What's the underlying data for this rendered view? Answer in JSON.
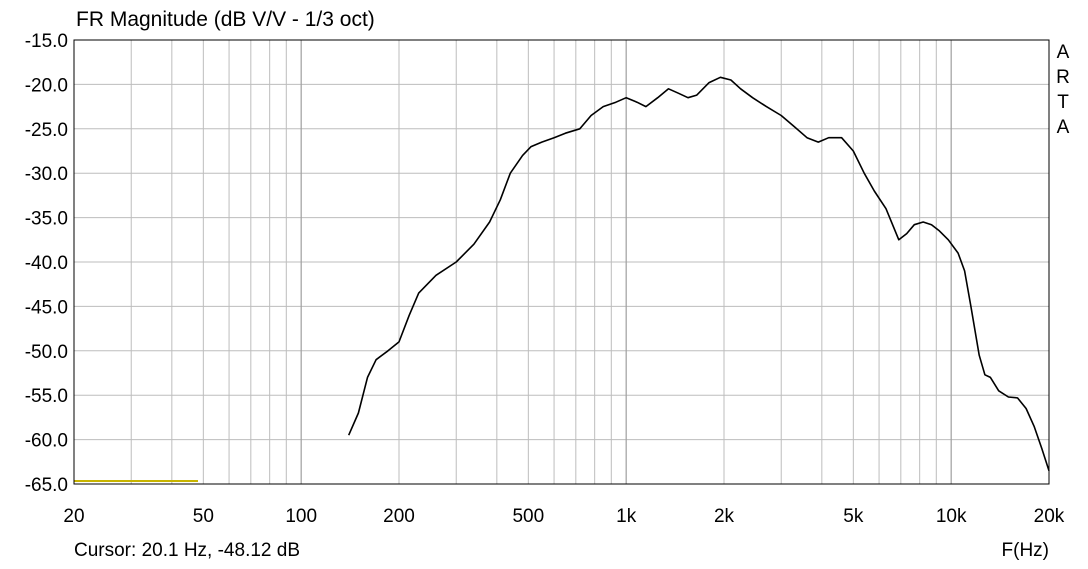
{
  "chart_data": {
    "type": "line",
    "title": "FR Magnitude (dB V/V - 1/3 oct)",
    "xlabel": "F(Hz)",
    "ylabel": "",
    "x_scale": "log",
    "xlim": [
      20,
      20000
    ],
    "ylim": [
      -65,
      -15
    ],
    "grid": true,
    "x_ticks": [
      {
        "value": 20,
        "label": "20"
      },
      {
        "value": 50,
        "label": "50"
      },
      {
        "value": 100,
        "label": "100"
      },
      {
        "value": 200,
        "label": "200"
      },
      {
        "value": 500,
        "label": "500"
      },
      {
        "value": 1000,
        "label": "1k"
      },
      {
        "value": 2000,
        "label": "2k"
      },
      {
        "value": 5000,
        "label": "5k"
      },
      {
        "value": 10000,
        "label": "10k"
      },
      {
        "value": 20000,
        "label": "20k"
      }
    ],
    "y_ticks": [
      {
        "value": -15,
        "label": "-15.0"
      },
      {
        "value": -20,
        "label": "-20.0"
      },
      {
        "value": -25,
        "label": "-25.0"
      },
      {
        "value": -30,
        "label": "-30.0"
      },
      {
        "value": -35,
        "label": "-35.0"
      },
      {
        "value": -40,
        "label": "-40.0"
      },
      {
        "value": -45,
        "label": "-45.0"
      },
      {
        "value": -50,
        "label": "-50.0"
      },
      {
        "value": -55,
        "label": "-55.0"
      },
      {
        "value": -60,
        "label": "-60.0"
      },
      {
        "value": -65,
        "label": "-65.0"
      }
    ],
    "series": [
      {
        "color": "#000000",
        "x": [
          140,
          150,
          160,
          170,
          185,
          200,
          215,
          230,
          260,
          300,
          340,
          380,
          410,
          440,
          480,
          510,
          550,
          600,
          650,
          720,
          780,
          850,
          930,
          1000,
          1080,
          1150,
          1250,
          1350,
          1450,
          1550,
          1650,
          1800,
          1950,
          2100,
          2250,
          2450,
          2700,
          3000,
          3300,
          3600,
          3900,
          4200,
          4600,
          5000,
          5400,
          5800,
          6300,
          6900,
          7300,
          7700,
          8200,
          8700,
          9200,
          9800,
          10500,
          11000,
          11500,
          12200,
          12700,
          13200,
          14000,
          15000,
          16000,
          17000,
          18000,
          19000,
          20000
        ],
        "y": [
          -59.5,
          -57,
          -53,
          -51,
          -50,
          -49,
          -46,
          -43.5,
          -41.5,
          -40,
          -38,
          -35.5,
          -33,
          -30,
          -28,
          -27,
          -26.5,
          -26,
          -25.5,
          -25,
          -23.5,
          -22.5,
          -22,
          -21.5,
          -22,
          -22.5,
          -21.5,
          -20.5,
          -21,
          -21.5,
          -21.2,
          -19.8,
          -19.2,
          -19.5,
          -20.5,
          -21.5,
          -22.5,
          -23.5,
          -24.8,
          -26,
          -26.5,
          -26,
          -26,
          -27.5,
          -30,
          -32,
          -34,
          -37.5,
          -36.8,
          -35.8,
          -35.5,
          -35.8,
          -36.5,
          -37.5,
          -39,
          -41,
          -45,
          -50.5,
          -52.7,
          -53,
          -54.5,
          -55.2,
          -55.3,
          -56.5,
          -58.5,
          -61,
          -63.5
        ]
      }
    ],
    "side_label": "ARTA",
    "cursor_text": "Cursor: 20.1 Hz, -48.12 dB",
    "colors": {
      "grid": "#bdbdbd",
      "frame": "#000000",
      "curve": "#000000",
      "cursor_line": "#c8b400"
    }
  }
}
